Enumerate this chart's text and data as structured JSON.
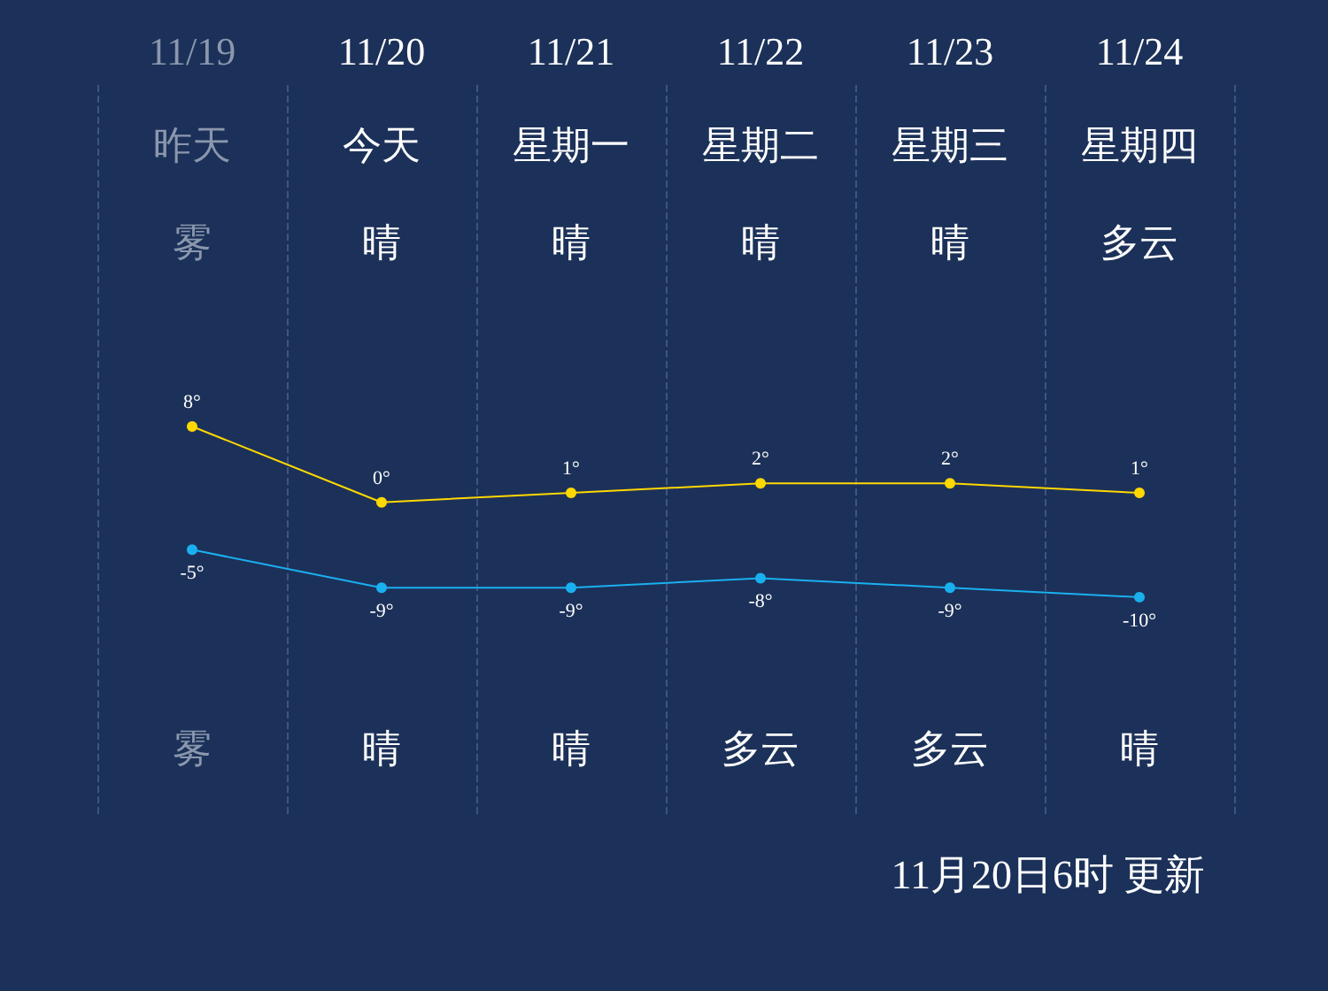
{
  "chart_data": {
    "type": "line",
    "categories": [
      "11/19",
      "11/20",
      "11/21",
      "11/22",
      "11/23",
      "11/24"
    ],
    "series": [
      {
        "color": "#ffd800",
        "values": [
          8,
          0,
          1,
          2,
          2,
          1
        ],
        "value_labels": [
          "8°",
          "0°",
          "1°",
          "2°",
          "2°",
          "1°"
        ]
      },
      {
        "color": "#1ab0f0",
        "values": [
          -5,
          -9,
          -9,
          -8,
          -9,
          -10
        ],
        "value_labels": [
          "-5°",
          "-9°",
          "-9°",
          "-8°",
          "-9°",
          "-10°"
        ]
      }
    ],
    "annotations": [
      "昨天",
      "今天",
      "星期一",
      "星期二",
      "星期三",
      "星期四",
      "雾",
      "晴",
      "晴",
      "晴",
      "晴",
      "多云",
      "雾",
      "晴",
      "晴",
      "多云",
      "多云",
      "晴",
      "11月20日6时 更新"
    ],
    "grid": "x",
    "marker": "circle",
    "line_style": "solid"
  }
}
